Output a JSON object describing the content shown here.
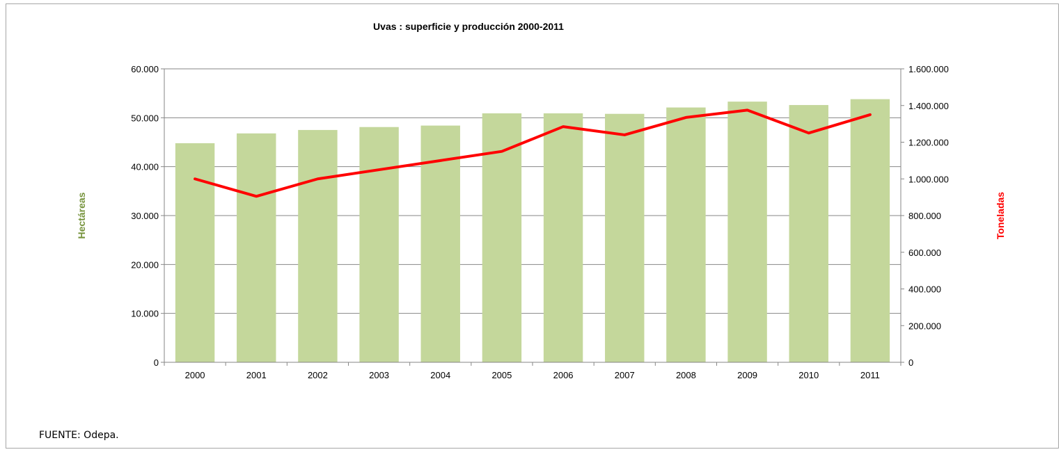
{
  "chart_data": {
    "type": "bar",
    "title": "Uvas : superficie y producción 2000-2011",
    "categories": [
      "2000",
      "2001",
      "2002",
      "2003",
      "2004",
      "2005",
      "2006",
      "2007",
      "2008",
      "2009",
      "2010",
      "2011"
    ],
    "series": [
      {
        "name": "",
        "type": "bar",
        "axis": "left",
        "color": "#c4d79b",
        "values": [
          44800,
          46800,
          47500,
          48100,
          48400,
          50900,
          50900,
          50800,
          52100,
          53300,
          52600,
          53800
        ]
      },
      {
        "name": "",
        "type": "line",
        "axis": "right",
        "color": "#ff0000",
        "values": [
          1000000,
          905000,
          1000000,
          1050000,
          1100000,
          1150000,
          1285000,
          1240000,
          1335000,
          1375000,
          1250000,
          1350000
        ]
      }
    ],
    "y_left": {
      "label": "Hectáreas",
      "label_color": "#76933c",
      "ylim": [
        0,
        60000
      ],
      "ticks": [
        "0",
        "10.000",
        "20.000",
        "30.000",
        "40.000",
        "50.000",
        "60.000"
      ]
    },
    "y_right": {
      "label": "Toneladas",
      "label_color": "#ff0000",
      "ylim": [
        0,
        1600000
      ],
      "ticks": [
        "0",
        "200.000",
        "400.000",
        "600.000",
        "800.000",
        "1.000.000",
        "1.200.000",
        "1.400.000",
        "1.600.000"
      ]
    },
    "grid": true,
    "legend": "none"
  },
  "source_note": "FUENTE: Odepa."
}
